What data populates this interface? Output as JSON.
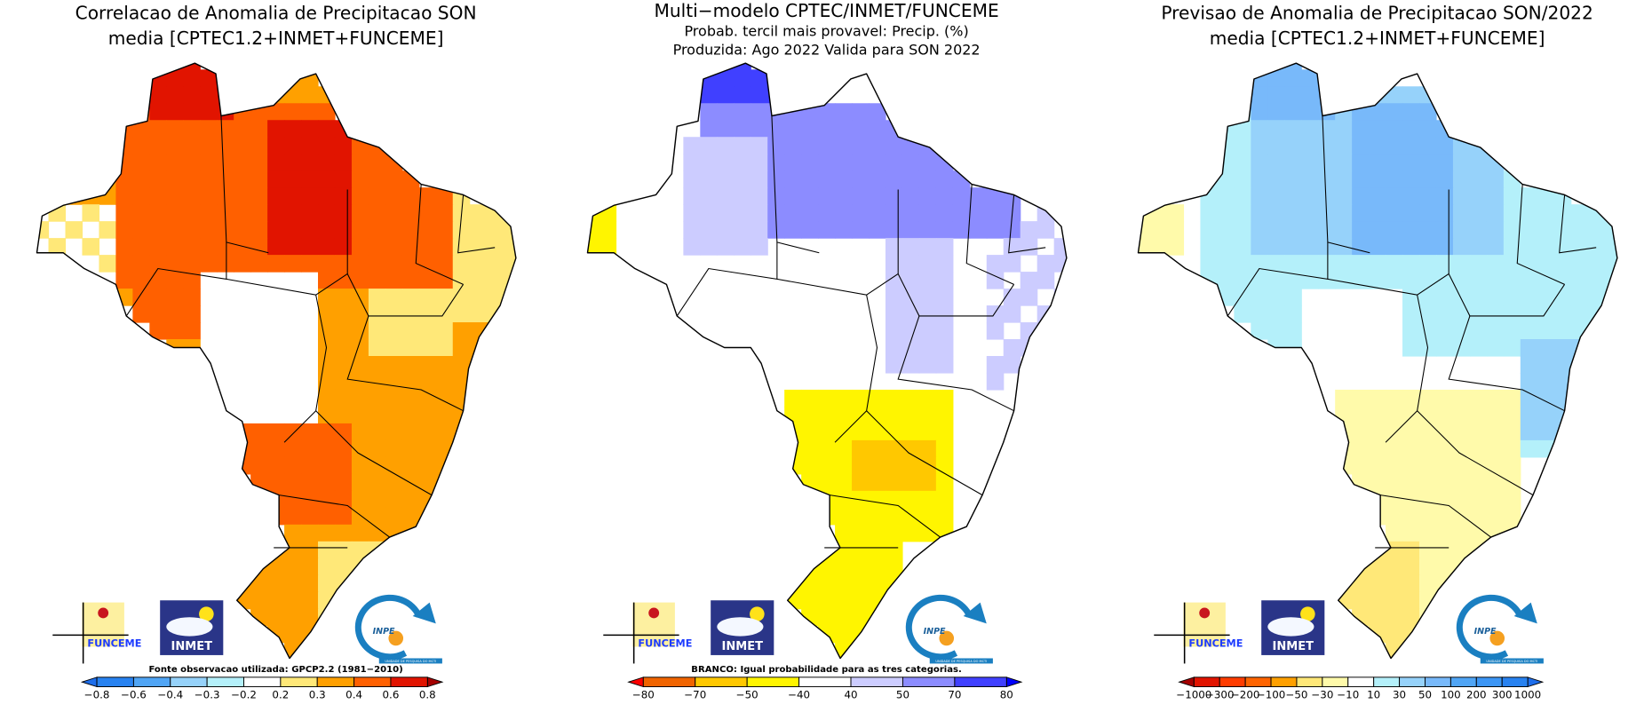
{
  "panels": [
    {
      "id": "correlation",
      "title_lines": [
        "Correlacao de Anomalia de Precipitacao SON",
        "media [CPTEC1.2+INMET+FUNCEME]"
      ],
      "note": "Fonte observacao utilizada: GPCP2.2 (1981−2010)",
      "colorbar": {
        "labels": [
          "−0.8",
          "−0.6",
          "−0.4",
          "−0.3",
          "−0.2",
          "0.2",
          "0.3",
          "0.4",
          "0.6",
          "0.8"
        ],
        "colors": [
          "#1e6eeb",
          "#2882f0",
          "#50a5f5",
          "#96d2fa",
          "#b4f0fa",
          "#ffffff",
          "#ffe878",
          "#ffa000",
          "#ff6000",
          "#e11400",
          "#a50000"
        ]
      }
    },
    {
      "id": "tercile-probability",
      "title_lines": [
        "Multi−modelo CPTEC/INMET/FUNCEME",
        "Probab. tercil mais provavel: Precip. (%)",
        "Produzida: Ago 2022   Valida para SON 2022"
      ],
      "note": "BRANCO: Igual probabilidade para as tres categorias.",
      "colorbar": {
        "labels": [
          "−80",
          "−70",
          "−50",
          "−40",
          "40",
          "50",
          "70",
          "80"
        ],
        "colors": [
          "#ff0000",
          "#f06400",
          "#ffc800",
          "#fff500",
          "#ffffff",
          "#ccccff",
          "#8c8cff",
          "#4040ff",
          "#0000ff"
        ]
      }
    },
    {
      "id": "anomaly-forecast",
      "title_lines": [
        "Previsao de Anomalia de Precipitacao SON/2022",
        "media [CPTEC1.2+INMET+FUNCEME]"
      ],
      "note": "",
      "colorbar": {
        "labels": [
          "−1000",
          "−300",
          "−200",
          "−100",
          "−50",
          "−30",
          "−10",
          "10",
          "30",
          "50",
          "100",
          "200",
          "300",
          "1000"
        ],
        "colors": [
          "#a50000",
          "#e11400",
          "#ff3c00",
          "#ff6400",
          "#ffa000",
          "#ffe878",
          "#fffaaa",
          "#ffffff",
          "#b4f0fa",
          "#96d2fa",
          "#78b9fa",
          "#50a5f5",
          "#3c96f5",
          "#2882f0",
          "#1e6eeb"
        ]
      }
    }
  ],
  "logos": {
    "funceme": "FUNCEME",
    "inmet": "INMET",
    "inpe": "INPE",
    "inpe_tagline": "UNIDADE DE PESQUISA DO MCTI"
  }
}
